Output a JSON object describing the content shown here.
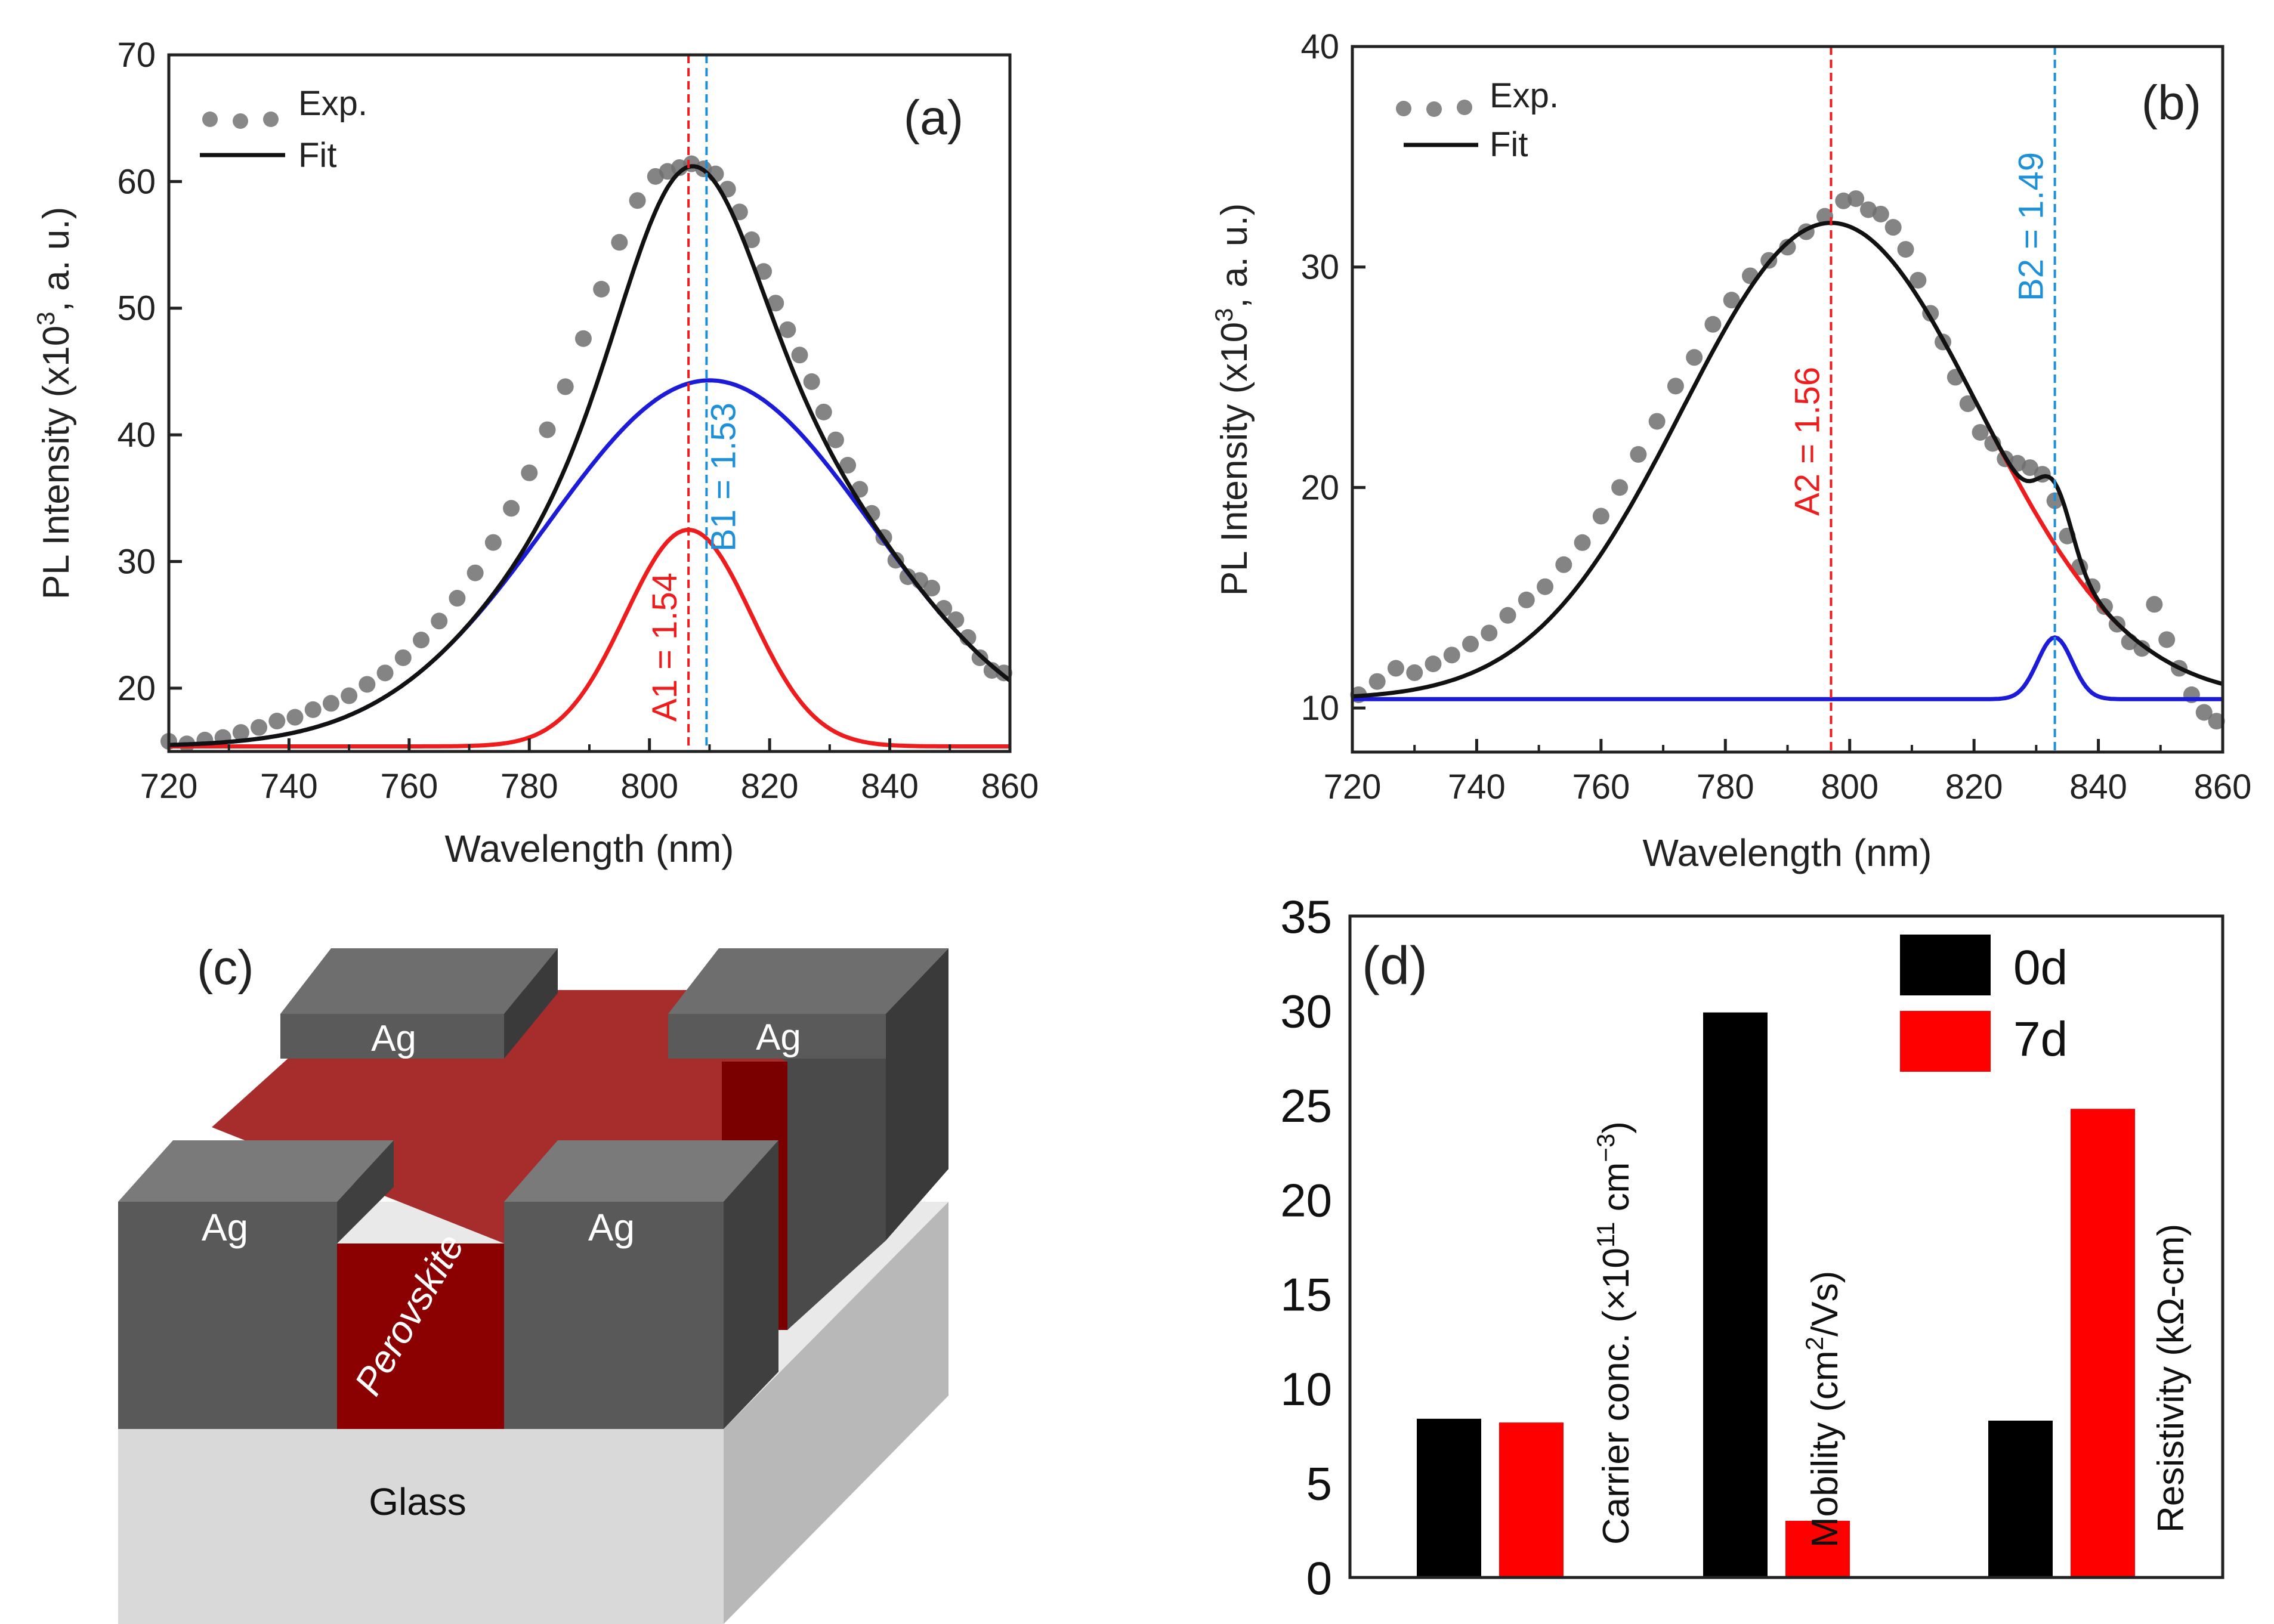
{
  "chart_data": [
    {
      "panel": "(a)",
      "type": "line",
      "xlabel": "Wavelength (nm)",
      "ylabel": "PL Intensity (x10^3, a. u.)",
      "ylabel_parts": {
        "pre": "PL Intensity (x10",
        "sup": "3",
        "post": ", a. u.)"
      },
      "xlim": [
        720,
        860
      ],
      "ylim": [
        15,
        70
      ],
      "xticks": [
        720,
        740,
        760,
        780,
        800,
        820,
        840,
        860
      ],
      "yticks": [
        20,
        30,
        40,
        50,
        60,
        70
      ],
      "legend": {
        "exp": "Exp.",
        "fit": "Fit",
        "position": "top-left"
      },
      "components": [
        {
          "name": "A1",
          "color": "#ee1c1c",
          "baseline": 15.4,
          "peak": 806.5,
          "height": 17.1,
          "sigma": 10.5
        },
        {
          "name": "B1",
          "color": "#1b1bd8",
          "baseline": 15.4,
          "peak": 810,
          "height": 28.9,
          "sigma": 27
        }
      ],
      "fit_color": "#111111",
      "vlines": [
        {
          "x": 806.5,
          "color": "#ee1c1c",
          "label": "A1 = 1.54"
        },
        {
          "x": 809.5,
          "color": "#1e90d8",
          "label": "B1 = 1.53"
        }
      ],
      "exp_points": {
        "x": [
          720,
          723,
          726,
          729,
          732,
          735,
          738,
          741,
          744,
          747,
          750,
          753,
          756,
          759,
          762,
          765,
          768,
          771,
          774,
          777,
          780,
          783,
          786,
          789,
          792,
          795,
          798,
          801,
          803,
          805,
          807,
          809,
          811,
          813,
          815,
          817,
          819,
          821,
          823,
          825,
          827,
          829,
          831,
          833,
          835,
          837,
          839,
          841,
          843,
          845,
          847,
          849,
          851,
          853,
          855,
          857,
          859
        ],
        "y": [
          15.8,
          15.6,
          15.9,
          16.1,
          16.5,
          16.9,
          17.4,
          17.7,
          18.3,
          18.8,
          19.4,
          20.3,
          21.2,
          22.4,
          23.8,
          25.3,
          27.1,
          29.1,
          31.5,
          34.2,
          37.0,
          40.4,
          43.8,
          47.6,
          51.5,
          55.2,
          58.5,
          60.4,
          60.8,
          61.1,
          61.4,
          61.0,
          60.6,
          59.4,
          57.6,
          55.4,
          52.9,
          50.4,
          48.3,
          46.3,
          44.2,
          41.8,
          39.6,
          37.6,
          35.7,
          33.8,
          31.9,
          30.1,
          28.8,
          28.5,
          27.9,
          26.3,
          25.4,
          24.0,
          22.4,
          21.4,
          21.2
        ]
      },
      "label": "(a)"
    },
    {
      "panel": "(b)",
      "type": "line",
      "xlabel": "Wavelength (nm)",
      "ylabel": "PL Intensity (x10^3, a. u.)",
      "ylabel_parts": {
        "pre": "PL Intensity (x10",
        "sup": "3",
        "post": ", a. u.)"
      },
      "xlim": [
        720,
        860
      ],
      "ylim": [
        8,
        40
      ],
      "xticks": [
        720,
        740,
        760,
        780,
        800,
        820,
        840,
        860
      ],
      "yticks": [
        10,
        20,
        30,
        40
      ],
      "legend": {
        "exp": "Exp.",
        "fit": "Fit",
        "position": "top-left"
      },
      "components": [
        {
          "name": "A2",
          "color": "#ee1c1c",
          "baseline": 10.4,
          "peak": 797,
          "height": 21.6,
          "sigma": 24,
          "range": [
            822,
            845
          ]
        },
        {
          "name": "B2",
          "color": "#1b1bd8",
          "baseline": 10.4,
          "peak": 833,
          "height": 2.8,
          "sigma": 2.8
        }
      ],
      "fit_color": "#111111",
      "vlines": [
        {
          "x": 797,
          "color": "#ee1c1c",
          "label": "A2 = 1.56"
        },
        {
          "x": 833,
          "color": "#1e90d8",
          "label": "B2 = 1.49"
        }
      ],
      "exp_points": {
        "x": [
          721,
          724,
          727,
          730,
          733,
          736,
          739,
          742,
          745,
          748,
          751,
          754,
          757,
          760,
          763,
          766,
          769,
          772,
          775,
          778,
          781,
          784,
          787,
          790,
          793,
          796,
          799,
          801,
          803,
          805,
          807,
          809,
          811,
          813,
          815,
          817,
          819,
          821,
          823,
          825,
          827,
          829,
          831,
          833,
          835,
          837,
          839,
          841,
          843,
          845,
          847,
          849,
          851,
          853,
          855,
          857,
          859
        ],
        "y": [
          10.6,
          11.2,
          11.8,
          11.6,
          12.0,
          12.4,
          12.9,
          13.4,
          14.2,
          14.9,
          15.5,
          16.5,
          17.5,
          18.7,
          20.0,
          21.5,
          23.0,
          24.6,
          25.9,
          27.4,
          28.5,
          29.6,
          30.3,
          30.9,
          31.6,
          32.3,
          33.0,
          33.1,
          32.6,
          32.4,
          31.8,
          30.8,
          29.4,
          27.9,
          26.6,
          25.0,
          23.8,
          22.5,
          22.0,
          21.3,
          21.1,
          20.9,
          20.6,
          19.4,
          17.8,
          16.4,
          15.5,
          14.6,
          13.8,
          13.0,
          12.7,
          14.7,
          13.1,
          11.8,
          10.6,
          9.8,
          9.4
        ]
      },
      "label": "(b)"
    },
    {
      "panel": "(d)",
      "type": "bar",
      "ylim": [
        0,
        35
      ],
      "yticks": [
        0,
        5,
        10,
        15,
        20,
        25,
        30,
        35
      ],
      "categories": [
        "Carrier conc. (×10^11 cm^-3)",
        "Mobility (cm^2/Vs)",
        "Resistivity (kΩ-cm)"
      ],
      "category_labels": [
        {
          "pre": "Carrier conc. (×10",
          "sup": "11",
          "mid": " cm",
          "sup2": "−3",
          "post": ")"
        },
        {
          "pre": "Mobility (cm",
          "sup": "2",
          "mid": "/Vs)",
          "sup2": "",
          "post": ""
        },
        {
          "pre": "Resistivity (kΩ-cm)",
          "sup": "",
          "mid": "",
          "sup2": "",
          "post": ""
        }
      ],
      "series": [
        {
          "name": "0d",
          "color": "#000000",
          "values": [
            8.4,
            29.9,
            8.3
          ]
        },
        {
          "name": "7d",
          "color": "#ff0000",
          "values": [
            8.2,
            3.0,
            24.8
          ]
        }
      ],
      "legend_position": "top-right",
      "label": "(d)"
    }
  ],
  "diagram_c": {
    "label": "(c)",
    "contact_label": "Ag",
    "film_label": "Perovskite",
    "substrate_label": "Glass"
  }
}
